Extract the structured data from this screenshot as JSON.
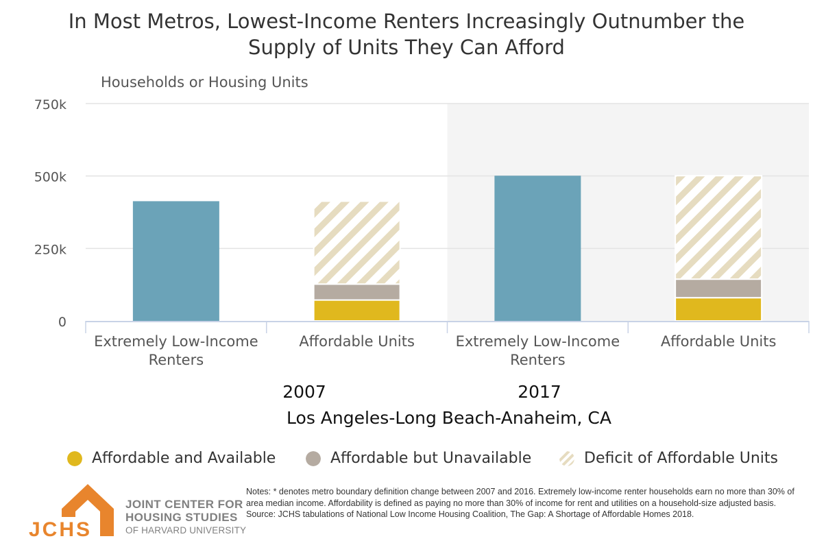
{
  "title": {
    "line1": "In Most Metros, Lowest-Income Renters Increasingly Outnumber the",
    "line2": "Supply of Units They Can Afford"
  },
  "chart_data": {
    "type": "bar",
    "stacked": true,
    "ylabel": "Households or Housing Units",
    "ylim": [
      0,
      750000
    ],
    "yticks": [
      0,
      250000,
      500000,
      750000
    ],
    "ytick_labels": [
      "0",
      "250k",
      "500k",
      "750k"
    ],
    "grid": true,
    "group_axis_title": "Los Angeles-Long Beach-Anaheim, CA",
    "groups": [
      {
        "label": "2007",
        "shaded": false,
        "categories": [
          {
            "label_lines": [
              "Extremely Low-Income",
              "Renters"
            ],
            "renters": 413000
          },
          {
            "label_lines": [
              "Affordable Units"
            ],
            "affordable_available": 72000,
            "affordable_unavailable": 55000,
            "deficit": 286000
          }
        ]
      },
      {
        "label": "2017",
        "shaded": true,
        "categories": [
          {
            "label_lines": [
              "Extremely Low-Income",
              "Renters"
            ],
            "renters": 501000
          },
          {
            "label_lines": [
              "Affordable Units"
            ],
            "affordable_available": 80000,
            "affordable_unavailable": 64000,
            "deficit": 357000
          }
        ]
      }
    ],
    "legend": [
      {
        "key": "affordable_available",
        "label": "Affordable and Available",
        "color": "#e0b81e"
      },
      {
        "key": "affordable_unavailable",
        "label": "Affordable but Unavailable",
        "color": "#b5aba1"
      },
      {
        "key": "deficit",
        "label": "Deficit of Affordable Units",
        "color": "#e6dcc0",
        "pattern": "diagonal-stripes"
      }
    ],
    "colors": {
      "renters": "#6ba3b8",
      "affordable_available": "#e0b81e",
      "affordable_unavailable": "#b5aba1",
      "deficit_stripe": "#e6dcc0",
      "shaded_panel": "#f4f4f4",
      "grid": "#e3e3e3",
      "axis": "#c8d2e6"
    }
  },
  "notes": {
    "line1": "Notes: * denotes metro boundary definition change between 2007 and 2016. Extremely low-income renter households earn no more than 30% of area median income. Affordability is defined as paying no more than 30% of income for rent and utilities on a household-size adjusted basis.",
    "source": "Source: JCHS tabulations of National Low Income Housing Coalition, The Gap: A Shortage of Affordable Homes 2018."
  },
  "logo": {
    "mark_text": "JCHS",
    "line1": "JOINT CENTER FOR",
    "line2": "HOUSING STUDIES",
    "line3": "OF HARVARD UNIVERSITY",
    "color": "#e8852d"
  }
}
